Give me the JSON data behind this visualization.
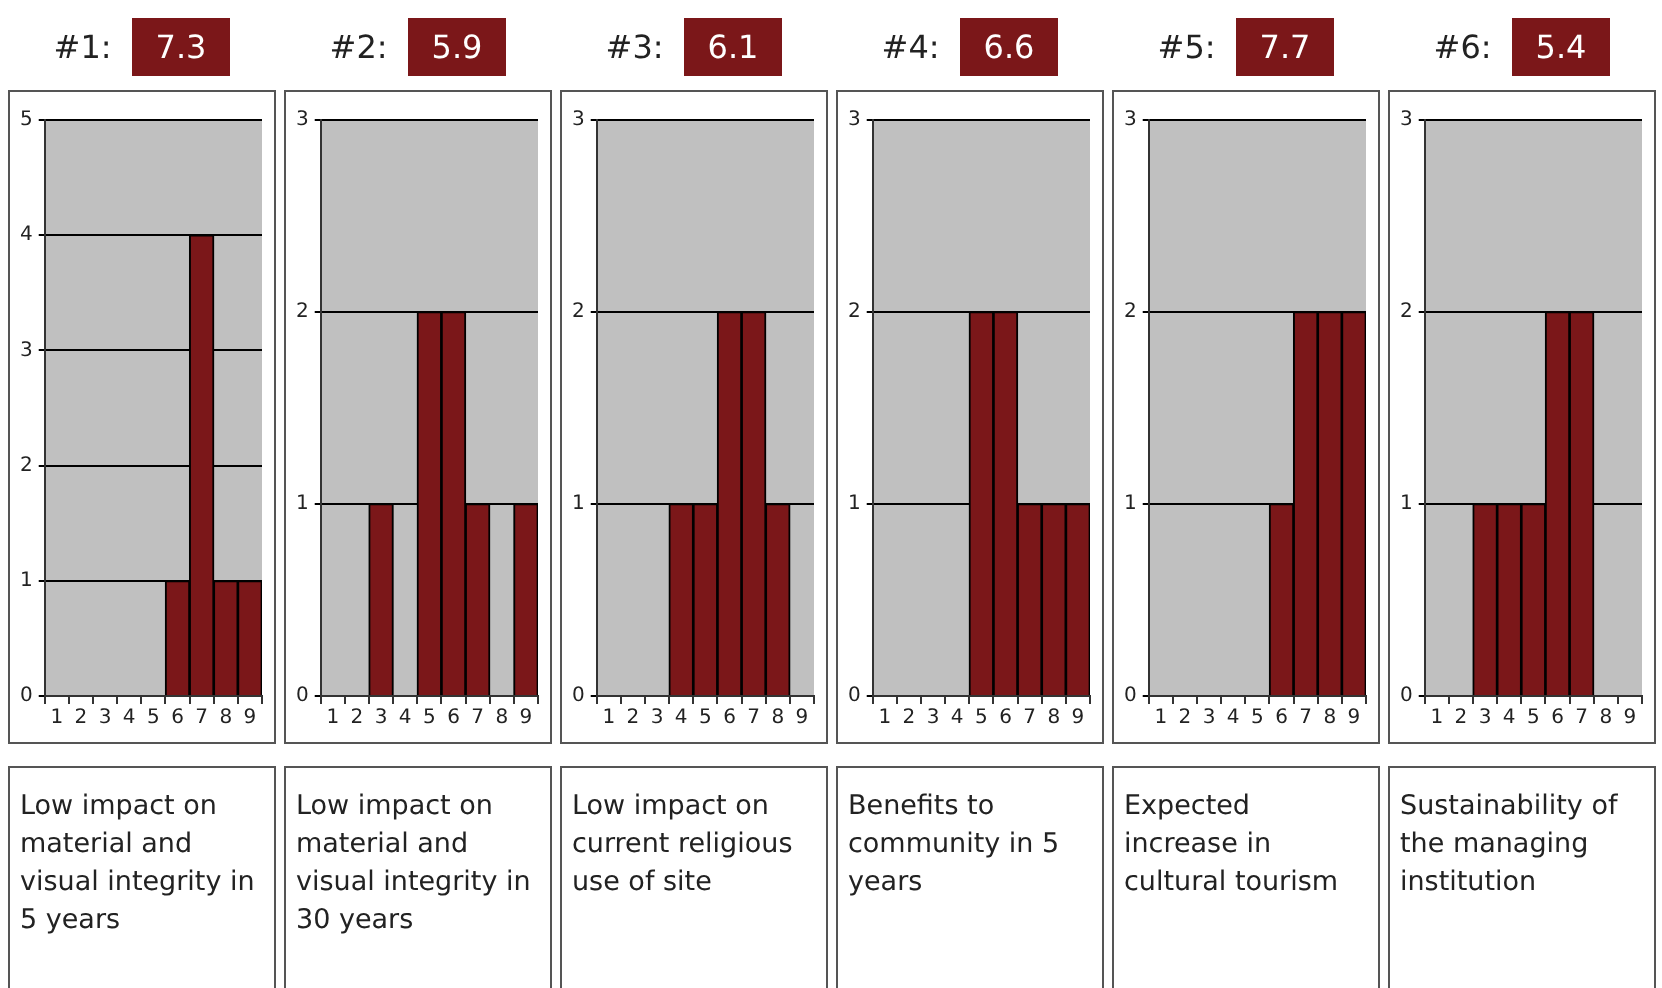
{
  "chart_data": [
    {
      "type": "bar",
      "title": "#1:",
      "subtitle": "7.3",
      "annotations": [
        "Low impact on material and visual integrity in 5 years"
      ],
      "categories": [
        "1",
        "2",
        "3",
        "4",
        "5",
        "6",
        "7",
        "8",
        "9"
      ],
      "values": [
        0,
        0,
        0,
        0,
        0,
        1,
        4,
        1,
        1
      ],
      "color": "#7b1719",
      "ylim": [
        0,
        5
      ],
      "yticks": [
        0,
        1,
        2,
        3,
        4,
        5
      ],
      "grid": "y"
    },
    {
      "type": "bar",
      "title": "#2:",
      "subtitle": "5.9",
      "annotations": [
        "Low impact on material and visual integrity in 30 years"
      ],
      "categories": [
        "1",
        "2",
        "3",
        "4",
        "5",
        "6",
        "7",
        "8",
        "9"
      ],
      "values": [
        0,
        0,
        1,
        0,
        2,
        2,
        1,
        0,
        1
      ],
      "color": "#7b1719",
      "ylim": [
        0,
        3
      ],
      "yticks": [
        0,
        1,
        2,
        3
      ],
      "grid": "y"
    },
    {
      "type": "bar",
      "title": "#3:",
      "subtitle": "6.1",
      "annotations": [
        "Low impact on current religious use of site"
      ],
      "categories": [
        "1",
        "2",
        "3",
        "4",
        "5",
        "6",
        "7",
        "8",
        "9"
      ],
      "values": [
        0,
        0,
        0,
        1,
        1,
        2,
        2,
        1,
        0
      ],
      "color": "#7b1719",
      "ylim": [
        0,
        3
      ],
      "yticks": [
        0,
        1,
        2,
        3
      ],
      "grid": "y"
    },
    {
      "type": "bar",
      "title": "#4:",
      "subtitle": "6.6",
      "annotations": [
        "Benefits to community in 5 years"
      ],
      "categories": [
        "1",
        "2",
        "3",
        "4",
        "5",
        "6",
        "7",
        "8",
        "9"
      ],
      "values": [
        0,
        0,
        0,
        0,
        2,
        2,
        1,
        1,
        1
      ],
      "color": "#7b1719",
      "ylim": [
        0,
        3
      ],
      "yticks": [
        0,
        1,
        2,
        3
      ],
      "grid": "y"
    },
    {
      "type": "bar",
      "title": "#5:",
      "subtitle": "7.7",
      "annotations": [
        "Expected increase in cultural tourism"
      ],
      "categories": [
        "1",
        "2",
        "3",
        "4",
        "5",
        "6",
        "7",
        "8",
        "9"
      ],
      "values": [
        0,
        0,
        0,
        0,
        0,
        1,
        2,
        2,
        2
      ],
      "color": "#7b1719",
      "ylim": [
        0,
        3
      ],
      "yticks": [
        0,
        1,
        2,
        3
      ],
      "grid": "y"
    },
    {
      "type": "bar",
      "title": "#6:",
      "subtitle": "5.4",
      "annotations": [
        "Sustainability of the managing institution"
      ],
      "categories": [
        "1",
        "2",
        "3",
        "4",
        "5",
        "6",
        "7",
        "8",
        "9"
      ],
      "values": [
        0,
        0,
        1,
        1,
        1,
        2,
        2,
        0,
        0
      ],
      "color": "#7b1719",
      "ylim": [
        0,
        3
      ],
      "yticks": [
        0,
        1,
        2,
        3
      ],
      "grid": "y"
    }
  ]
}
